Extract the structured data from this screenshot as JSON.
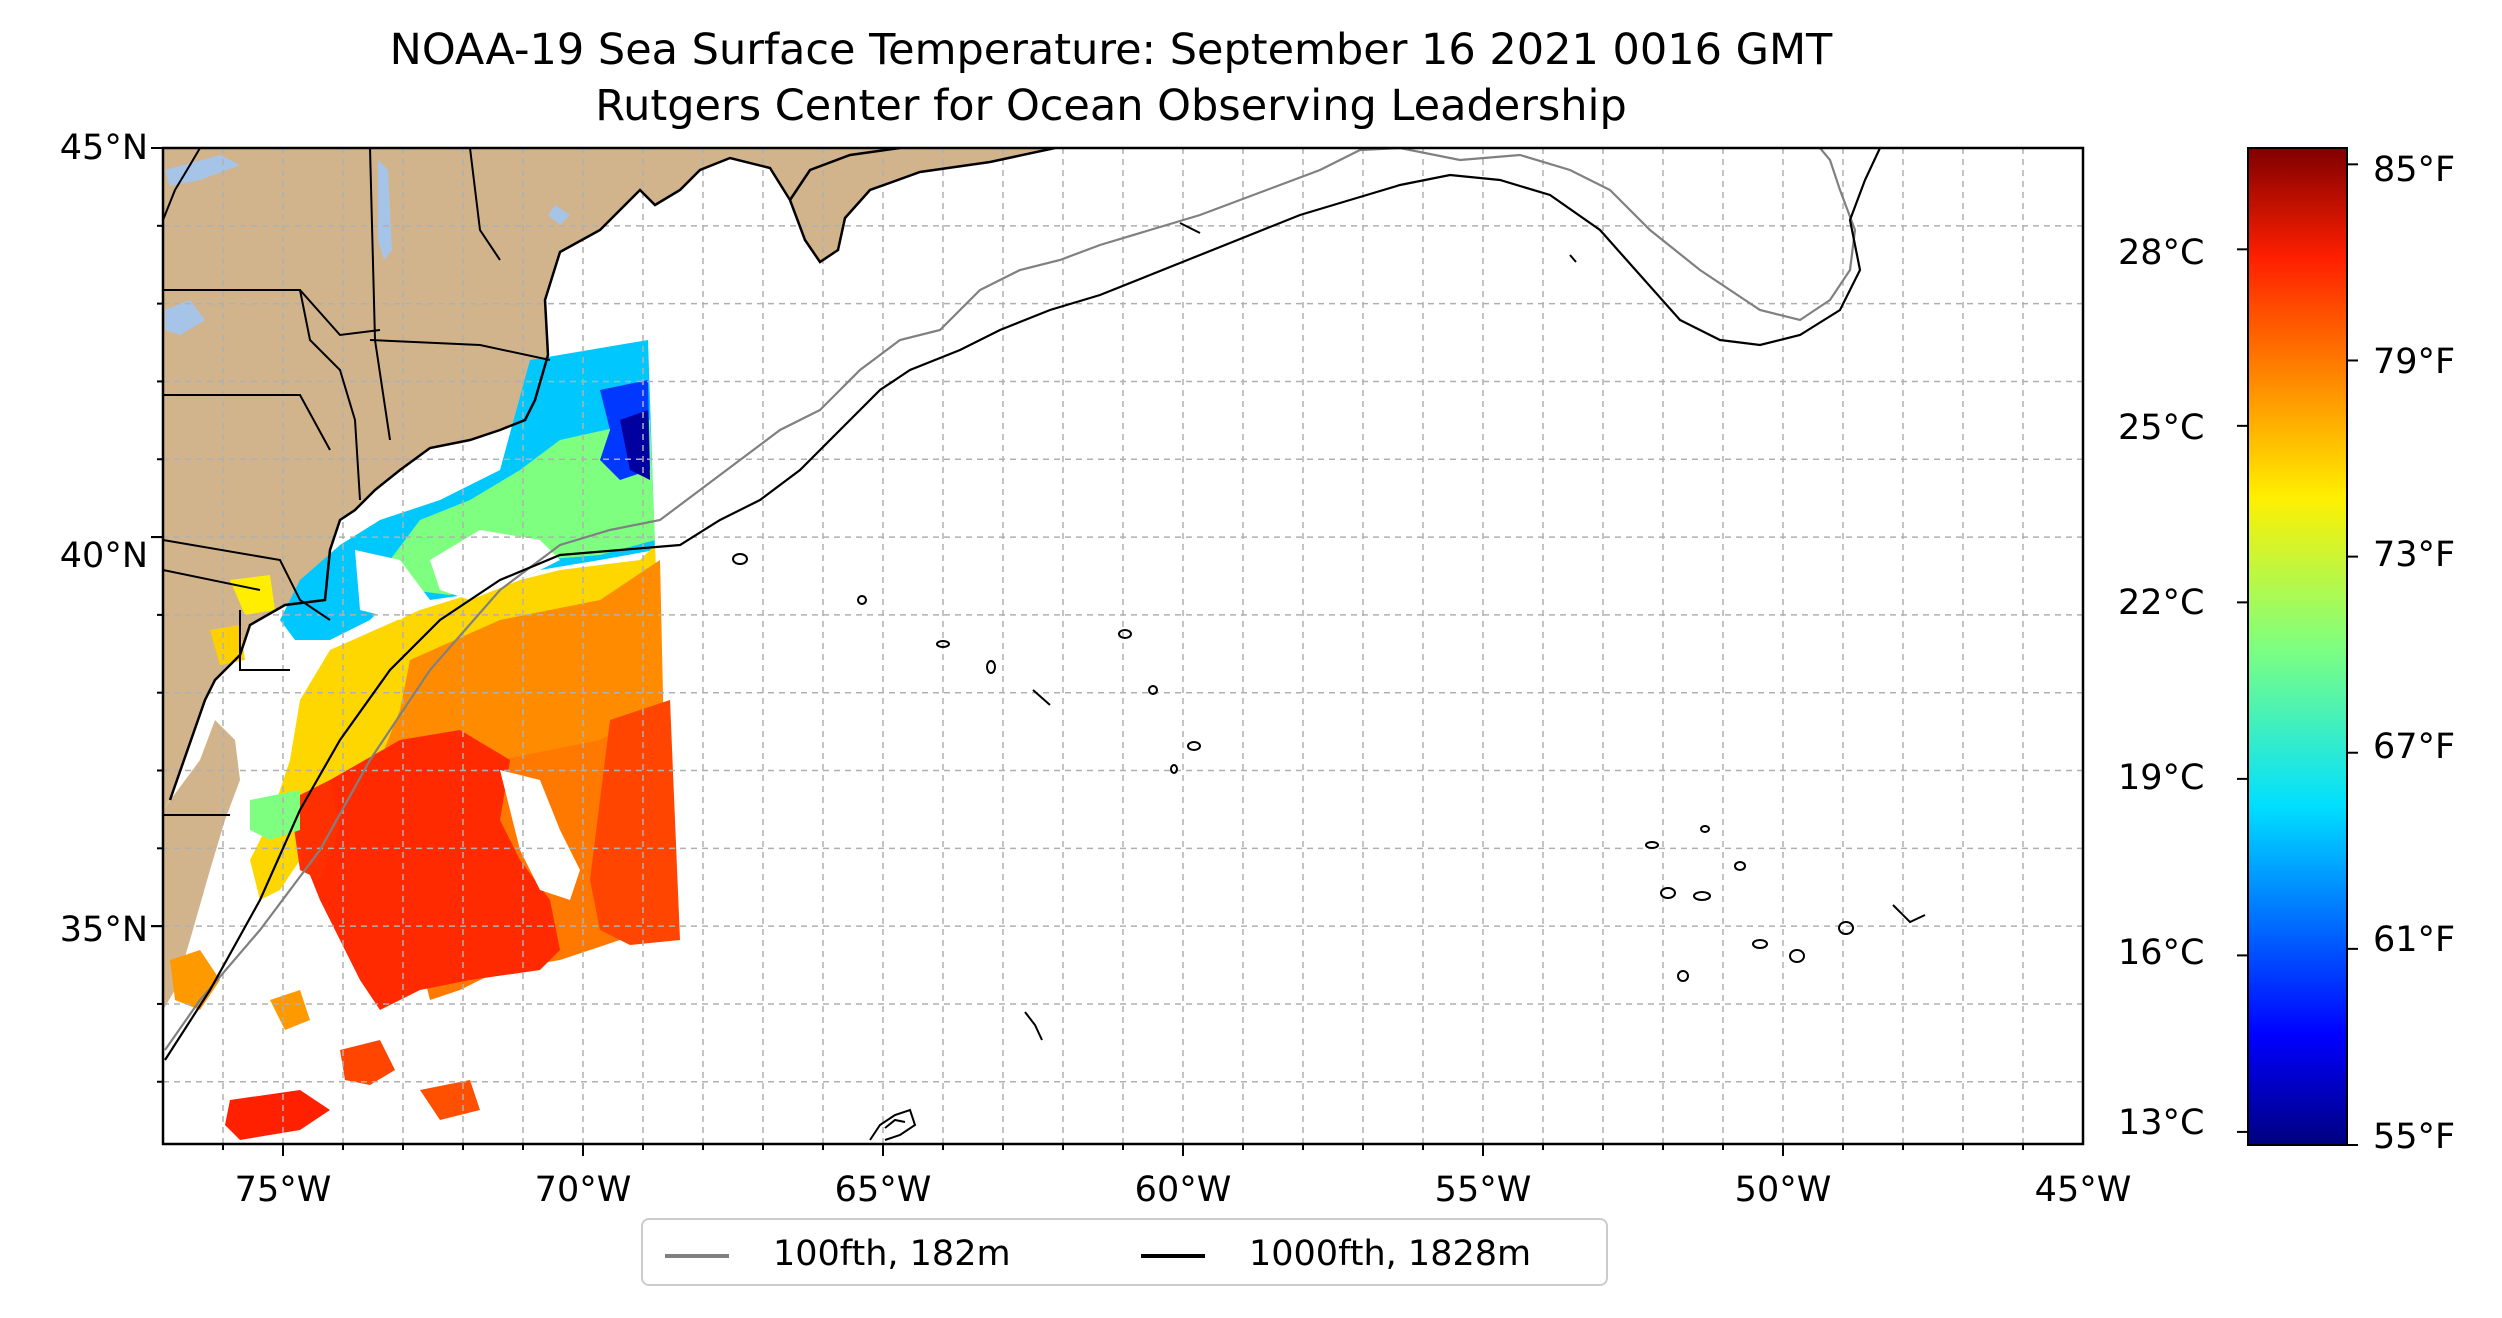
{
  "title": "NOAA-19 Sea Surface Temperature: September 16 2021 0016 GMT",
  "subtitle": "Rutgers Center for Ocean Observing Leadership",
  "map": {
    "lat_labels": [
      "45°N",
      "40°N",
      "35°N"
    ],
    "lon_labels": [
      "75°W",
      "70°W",
      "65°W",
      "60°W",
      "55°W",
      "50°W",
      "45°W"
    ],
    "extent": {
      "lon_min": -77,
      "lon_max": -45,
      "lat_min": 32.2,
      "lat_max": 45
    },
    "gridlines": "dashed",
    "land_color": "#d2b48c",
    "lake_color": "#a6c4e8"
  },
  "colorbar": {
    "celsius_labels": [
      "28°C",
      "25°C",
      "22°C",
      "19°C",
      "16°C",
      "13°C"
    ],
    "fahrenheit_labels": [
      "85°F",
      "79°F",
      "73°F",
      "67°F",
      "61°F",
      "55°F"
    ],
    "colormap": "jet",
    "range_f": [
      55,
      85.5
    ]
  },
  "legend": {
    "items": [
      {
        "label": "100fth, 182m",
        "color": "#808080"
      },
      {
        "label": "1000fth, 1828m",
        "color": "#000000"
      }
    ],
    "placement": "bottom-center"
  }
}
